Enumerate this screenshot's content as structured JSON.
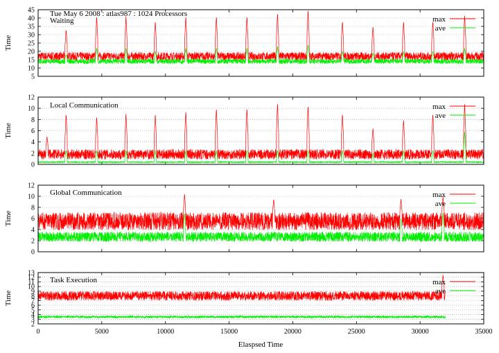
{
  "title": "Tue May 6 2008 : atlas987 : 1024 Processors",
  "xlabel": "Elaspsed Time",
  "colors": {
    "max": "#ff0000",
    "ave": "#00ee00",
    "grid": "#999999"
  },
  "chart_data": [
    {
      "type": "line",
      "panel": "Waiting",
      "ylabel": "Time",
      "xlim": [
        0,
        35000
      ],
      "ylim": [
        5,
        45
      ],
      "yticks": [
        5,
        10,
        15,
        20,
        25,
        30,
        35,
        40,
        45
      ],
      "grid": true,
      "legend": "top-right",
      "series": [
        {
          "name": "max",
          "base": 17,
          "noise": 2.5,
          "spike_x": [
            2200,
            4600,
            6900,
            9200,
            11600,
            14000,
            16400,
            18800,
            21200,
            23900,
            26300,
            28700,
            31000,
            33500
          ],
          "spike_y": [
            33,
            41,
            41,
            38,
            41,
            41,
            41,
            43,
            45,
            38,
            35,
            38,
            38,
            42
          ],
          "x_end": 35000
        },
        {
          "name": "ave",
          "base": 14,
          "noise": 1.5,
          "spike_x": [
            2200,
            4600,
            6900,
            9200,
            11600,
            14000,
            16400,
            18800,
            21200,
            23900,
            26300,
            28700,
            31000,
            33500
          ],
          "spike_y": [
            18,
            22,
            22,
            20,
            22,
            22,
            22,
            23,
            24,
            20,
            19,
            20,
            20,
            22
          ],
          "x_end": 35000
        }
      ]
    },
    {
      "type": "line",
      "panel": "Local Communication",
      "ylabel": "Time",
      "xlim": [
        0,
        35000
      ],
      "ylim": [
        0,
        12
      ],
      "yticks": [
        0,
        2,
        4,
        6,
        8,
        10,
        12
      ],
      "grid": true,
      "legend": "top-right",
      "series": [
        {
          "name": "max",
          "base": 1.8,
          "noise": 0.9,
          "spike_x": [
            700,
            2200,
            4600,
            6900,
            9200,
            11600,
            14000,
            16400,
            18800,
            21200,
            23900,
            26300,
            28700,
            31000,
            33500
          ],
          "spike_y": [
            5,
            9,
            8.5,
            9,
            9,
            9.5,
            10,
            10,
            11,
            10.5,
            9,
            6.5,
            8,
            9,
            11
          ],
          "x_end": 35000
        },
        {
          "name": "ave",
          "base": 0.3,
          "noise": 0.2,
          "spike_x": [
            2200,
            4600,
            6900,
            9200,
            11600,
            14000,
            16400,
            18800,
            21200,
            23900,
            26300,
            28700,
            31000,
            33500
          ],
          "spike_y": [
            2.5,
            2.5,
            2.5,
            2.5,
            2.5,
            2.5,
            2.5,
            2.5,
            2.5,
            2.5,
            2,
            2.5,
            2.5,
            6
          ],
          "x_end": 35000
        }
      ]
    },
    {
      "type": "line",
      "panel": "Global Communication",
      "ylabel": "Time",
      "xlim": [
        0,
        35000
      ],
      "ylim": [
        0,
        12
      ],
      "yticks": [
        0,
        2,
        4,
        6,
        8,
        10,
        12
      ],
      "grid": true,
      "legend": "top-right",
      "series": [
        {
          "name": "max",
          "base": 5.5,
          "noise": 1.6,
          "spike_x": [
            11500,
            18500,
            28500,
            31800
          ],
          "spike_y": [
            10.5,
            9.5,
            9.5,
            10
          ],
          "x_end": 35000
        },
        {
          "name": "ave",
          "base": 2.7,
          "noise": 0.9,
          "spike_x": [
            11500,
            28500,
            31800
          ],
          "spike_y": [
            7,
            6,
            7
          ],
          "x_end": 35000
        }
      ]
    },
    {
      "type": "line",
      "panel": "Task Execution",
      "ylabel": "Time",
      "xlim": [
        0,
        35000
      ],
      "ylim": [
        2,
        13
      ],
      "yticks": [
        2,
        3,
        4,
        5,
        6,
        7,
        8,
        9,
        10,
        11,
        12,
        13
      ],
      "xticks": [
        0,
        5000,
        10000,
        15000,
        20000,
        25000,
        30000,
        35000
      ],
      "grid": true,
      "legend": "top-right",
      "series": [
        {
          "name": "max",
          "base": 8,
          "noise": 1.0,
          "spike_x": [
            31800
          ],
          "spike_y": [
            12.5
          ],
          "x_end": 32000
        },
        {
          "name": "ave",
          "base": 3.5,
          "noise": 0.25,
          "spike_x": [],
          "spike_y": [],
          "x_end": 32000
        }
      ]
    }
  ]
}
